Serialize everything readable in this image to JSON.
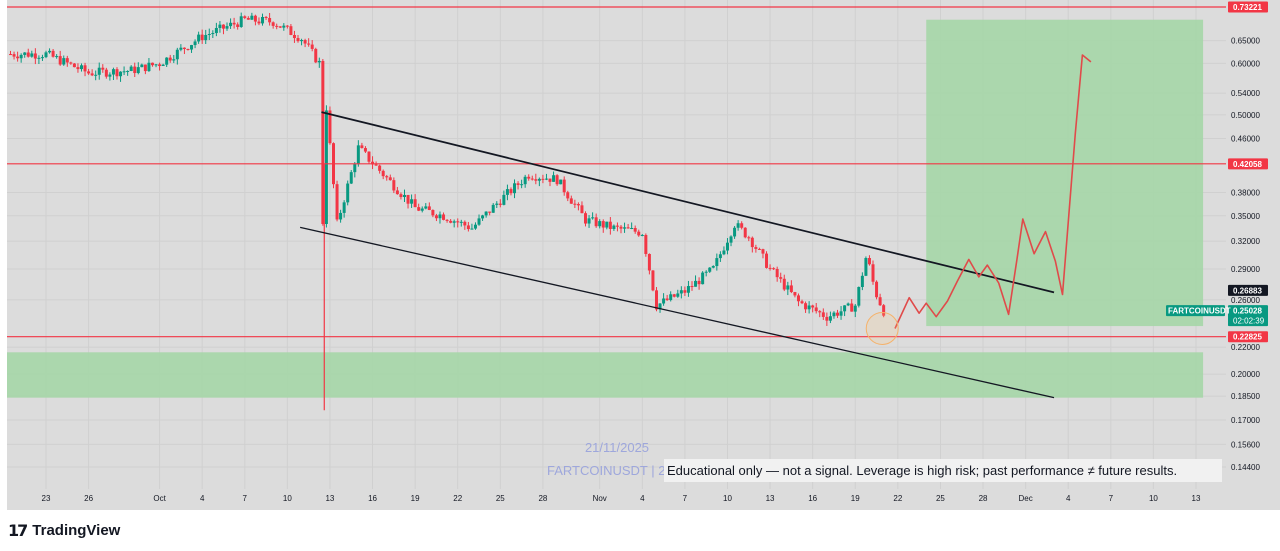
{
  "chart_data": {
    "type": "candlestick",
    "symbol": "FARTCOINUSDT",
    "watermark_date": "21/11/2025",
    "watermark_symbol": "FARTCOINUSDT | 2",
    "disclaimer": "Educational only — not a signal. Leverage is high risk; past performance ≠ future results.",
    "y_scale": "log",
    "ylim": [
      0.138,
      0.745
    ],
    "price_ticks": [
      "0.65000",
      "0.60000",
      "0.54000",
      "0.50000",
      "0.46000",
      "0.38000",
      "0.35000",
      "0.32000",
      "0.29000",
      "0.26000",
      "0.22000",
      "0.20000",
      "0.18500",
      "0.17000",
      "0.15600",
      "0.14400"
    ],
    "date_ticks": [
      "23",
      "26",
      "Oct",
      "4",
      "7",
      "10",
      "13",
      "16",
      "19",
      "22",
      "25",
      "28",
      "Nov",
      "4",
      "7",
      "10",
      "13",
      "16",
      "19",
      "22",
      "25",
      "28",
      "Dec",
      "4",
      "7",
      "10",
      "13"
    ],
    "x_range_days": [
      0,
      82
    ],
    "date_tick_days": [
      0,
      3,
      8,
      11,
      14,
      17,
      20,
      23,
      26,
      29,
      32,
      35,
      39,
      42,
      45,
      48,
      51,
      54,
      57,
      60,
      63,
      66,
      69,
      72,
      75,
      78,
      81
    ],
    "price_labels": [
      {
        "value": "0.73221",
        "price": 0.73221,
        "color": "#f23645"
      },
      {
        "value": "0.42058",
        "price": 0.42058,
        "color": "#f23645"
      },
      {
        "value": "0.26883",
        "price": 0.26883,
        "color": "#131722"
      },
      {
        "value": "0.25028",
        "price": 0.25028,
        "color": "#089981",
        "countdown": "02:02:39"
      },
      {
        "value": "0.22825",
        "price": 0.22825,
        "color": "#f23645"
      }
    ],
    "symbol_tag": "FARTCOINUSDT",
    "horizontal_lines": [
      {
        "name": "resistance-top",
        "price": 0.73221,
        "color": "#f23645"
      },
      {
        "name": "resistance-mid",
        "price": 0.42058,
        "color": "#f23645"
      },
      {
        "name": "support",
        "price": 0.22825,
        "color": "#f23645"
      }
    ],
    "channel_upper": [
      [
        19.4,
        0.505
      ],
      [
        71,
        0.267
      ]
    ],
    "channel_lower": [
      [
        17.9,
        0.336
      ],
      [
        71,
        0.184
      ]
    ],
    "target_zone": {
      "day_from": 62,
      "day_to": 81.5,
      "price_from": 0.237,
      "price_to": 0.7,
      "color": "#a5d6a7"
    },
    "demand_zone": {
      "day_from": -3,
      "day_to": 81.5,
      "price_from": 0.184,
      "price_to": 0.216,
      "color": "#a5d6a7"
    },
    "wick_spike": {
      "day": 19.6,
      "high": 0.42,
      "low": 0.176
    },
    "projection_path": [
      [
        59.8,
        0.235
      ],
      [
        60.8,
        0.262
      ],
      [
        61.5,
        0.248
      ],
      [
        62.0,
        0.257
      ],
      [
        62.7,
        0.245
      ],
      [
        63.5,
        0.259
      ],
      [
        64.2,
        0.278
      ],
      [
        65.0,
        0.3
      ],
      [
        65.7,
        0.282
      ],
      [
        66.3,
        0.294
      ],
      [
        67.1,
        0.276
      ],
      [
        67.8,
        0.247
      ],
      [
        68.4,
        0.301
      ],
      [
        68.8,
        0.346
      ],
      [
        69.6,
        0.306
      ],
      [
        70.4,
        0.331
      ],
      [
        71.1,
        0.298
      ],
      [
        71.6,
        0.265
      ],
      [
        72.5,
        0.468
      ],
      [
        73.0,
        0.618
      ],
      [
        73.6,
        0.603
      ]
    ],
    "highlight_circle": {
      "day": 58.9,
      "price": 0.235
    },
    "candles_ohlc_summary": [
      {
        "day": 0,
        "close": 0.62
      },
      {
        "day": 3,
        "close": 0.58
      },
      {
        "day": 6,
        "close": 0.585
      },
      {
        "day": 8,
        "close": 0.6
      },
      {
        "day": 11,
        "close": 0.66
      },
      {
        "day": 14,
        "close": 0.7
      },
      {
        "day": 16,
        "close": 0.695
      },
      {
        "day": 18,
        "close": 0.655
      },
      {
        "day": 19.5,
        "close": 0.59
      },
      {
        "day": 20.5,
        "close": 0.34
      },
      {
        "day": 22,
        "close": 0.445
      },
      {
        "day": 24,
        "close": 0.4
      },
      {
        "day": 26,
        "close": 0.36
      },
      {
        "day": 28,
        "close": 0.35
      },
      {
        "day": 30,
        "close": 0.335
      },
      {
        "day": 32,
        "close": 0.37
      },
      {
        "day": 34,
        "close": 0.405
      },
      {
        "day": 36,
        "close": 0.398
      },
      {
        "day": 38,
        "close": 0.345
      },
      {
        "day": 40,
        "close": 0.335
      },
      {
        "day": 42,
        "close": 0.33
      },
      {
        "day": 43,
        "close": 0.255
      },
      {
        "day": 45,
        "close": 0.268
      },
      {
        "day": 47,
        "close": 0.29
      },
      {
        "day": 48.5,
        "close": 0.34
      },
      {
        "day": 49.5,
        "close": 0.325
      },
      {
        "day": 51,
        "close": 0.29
      },
      {
        "day": 53,
        "close": 0.258
      },
      {
        "day": 55,
        "close": 0.245
      },
      {
        "day": 57,
        "close": 0.255
      },
      {
        "day": 57.8,
        "close": 0.305
      },
      {
        "day": 58.4,
        "close": 0.268
      },
      {
        "day": 59,
        "close": 0.25
      }
    ]
  }
}
